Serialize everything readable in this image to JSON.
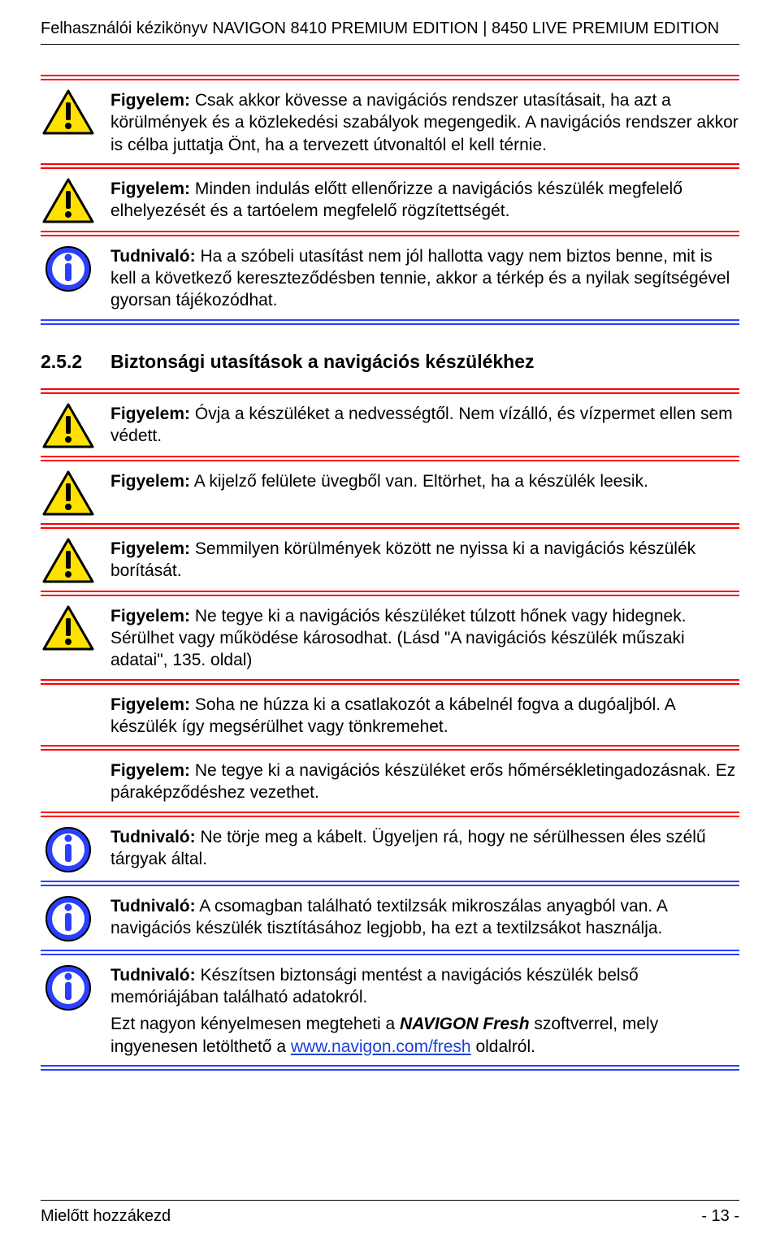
{
  "header": {
    "title": "Felhasználói kézikönyv NAVIGON 8410 PREMIUM EDITION | 8450 LIVE PREMIUM EDITION"
  },
  "colors": {
    "warning_bg": "#ffe100",
    "warning_border": "#000000",
    "info_bg": "#2b3fff",
    "info_inner": "#ffffff",
    "red_rule": "#ff0000",
    "blue_rule": "#2b3fff",
    "link": "#1a3fd8"
  },
  "notices_top": [
    {
      "icon": "warning",
      "rule": "red",
      "prefix": "Figyelem:",
      "paragraphs": [
        "Csak akkor kövesse a navigációs rendszer utasításait, ha azt a körülmények és a közlekedési szabályok megengedik. A navigációs rendszer akkor is célba juttatja Önt, ha a tervezett útvonaltól el kell térnie."
      ]
    },
    {
      "icon": "warning",
      "rule": "red",
      "prefix": "Figyelem:",
      "paragraphs": [
        "Minden indulás előtt ellenőrizze a navigációs készülék megfelelő elhelyezését és a tartóelem megfelelő rögzítettségét."
      ]
    },
    {
      "icon": "info",
      "rule": "blue",
      "prefix": "Tudnivaló:",
      "paragraphs": [
        "Ha a szóbeli utasítást nem jól hallotta vagy nem biztos benne, mit is kell a következő kereszteződésben tennie, akkor a térkép és a nyilak segítségével gyorsan tájékozódhat."
      ]
    }
  ],
  "section": {
    "number": "2.5.2",
    "title": "Biztonsági utasítások a navigációs készülékhez"
  },
  "notices_bottom": [
    {
      "icon": "warning",
      "rule": "red",
      "prefix": "Figyelem:",
      "paragraphs": [
        "Óvja a készüléket a nedvességtől. Nem vízálló, és vízpermet ellen sem védett."
      ]
    },
    {
      "icon": "warning",
      "rule": "red",
      "prefix": "Figyelem:",
      "paragraphs": [
        "A kijelző felülete üvegből van. Eltörhet, ha a készülék leesik."
      ]
    },
    {
      "icon": "warning",
      "rule": "red",
      "prefix": "Figyelem:",
      "paragraphs": [
        "Semmilyen körülmények között ne nyissa ki a navigációs készülék borítását."
      ]
    },
    {
      "icon": "warning",
      "rule": "red",
      "prefix": "Figyelem:",
      "paragraphs": [
        "Ne tegye ki a navigációs készüléket túlzott hőnek vagy hidegnek. Sérülhet vagy működése károsodhat. (Lásd \"A navigációs készülék műszaki adatai\", 135. oldal)"
      ]
    },
    {
      "icon": "",
      "rule": "red",
      "prefix": "Figyelem:",
      "paragraphs": [
        "Soha ne húzza ki a csatlakozót a kábelnél fogva a dugóaljból. A készülék így megsérülhet vagy tönkremehet."
      ]
    },
    {
      "icon": "",
      "rule": "red",
      "prefix": "Figyelem:",
      "paragraphs": [
        "Ne tegye ki a navigációs készüléket erős hőmérsékletingadozásnak. Ez páraképződéshez vezethet."
      ]
    },
    {
      "icon": "info",
      "rule": "blue",
      "prefix": "Tudnivaló:",
      "paragraphs": [
        "Ne törje meg a kábelt. Ügyeljen rá, hogy ne sérülhessen éles szélű tárgyak által."
      ]
    },
    {
      "icon": "info",
      "rule": "blue",
      "prefix": "Tudnivaló:",
      "paragraphs": [
        "A csomagban található textilzsák mikroszálas anyagból van. A navigációs készülék tisztításához legjobb, ha ezt a textilzsákot használja."
      ]
    }
  ],
  "final_notice": {
    "icon": "info",
    "rule": "blue",
    "prefix": "Tudnivaló:",
    "para1": "Készítsen biztonsági mentést a navigációs készülék belső memóriájában található adatokról.",
    "para2_pre": "Ezt nagyon kényelmesen megteheti a ",
    "para2_brand": "NAVIGON Fresh",
    "para2_mid": " szoftverrel, mely ingyenesen letölthető a ",
    "para2_link": "www.navigon.com/fresh",
    "para2_post": " oldalról."
  },
  "footer": {
    "left": "Mielőtt hozzákezd",
    "right": "- 13 -"
  }
}
